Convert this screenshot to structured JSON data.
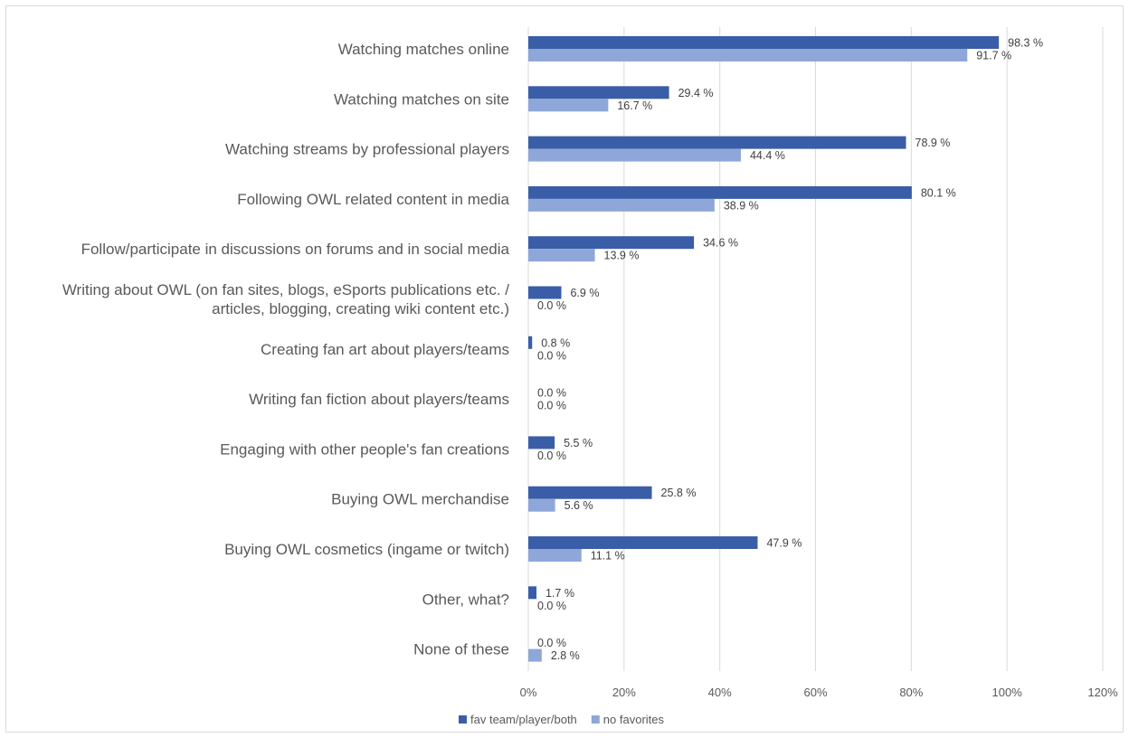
{
  "chart_data": {
    "type": "bar",
    "orientation": "horizontal",
    "categories": [
      "Watching matches online",
      "Watching matches on site",
      "Watching streams by professional players",
      "Following OWL related content in media",
      "Follow/participate in discussions on forums and in social media",
      [
        "Writing about OWL (on fan sites, blogs, eSports publications etc. /",
        "articles, blogging, creating wiki content etc.)"
      ],
      "Creating fan art about players/teams",
      "Writing fan fiction about players/teams",
      "Engaging with other people's fan creations",
      "Buying OWL merchandise",
      "Buying OWL cosmetics (ingame or twitch)",
      "Other, what?",
      "None of these"
    ],
    "series": [
      {
        "name": "fav team/player/both",
        "color": "#3a5da8",
        "values": [
          98.3,
          29.4,
          78.9,
          80.1,
          34.6,
          6.9,
          0.8,
          0.0,
          5.5,
          25.8,
          47.9,
          1.7,
          0.0
        ],
        "labels": [
          "98.3 %",
          "29.4 %",
          "78.9 %",
          "80.1 %",
          "34.6 %",
          "6.9 %",
          "0.8 %",
          "0.0 %",
          "5.5 %",
          "25.8 %",
          "47.9 %",
          "1.7 %",
          "0.0 %"
        ]
      },
      {
        "name": "no favorites",
        "color": "#8fa7d8",
        "values": [
          91.7,
          16.7,
          44.4,
          38.9,
          13.9,
          0.0,
          0.0,
          0.0,
          0.0,
          5.6,
          11.1,
          0.0,
          2.8
        ],
        "labels": [
          "91.7 %",
          "16.7 %",
          "44.4 %",
          "38.9 %",
          "13.9 %",
          "0.0 %",
          "0.0 %",
          "0.0 %",
          "0.0 %",
          "5.6 %",
          "11.1 %",
          "0.0 %",
          "2.8 %"
        ]
      }
    ],
    "xlim": [
      0,
      120
    ],
    "xticks": [
      0,
      20,
      40,
      60,
      80,
      100,
      120
    ],
    "xtick_labels": [
      "0%",
      "20%",
      "40%",
      "60%",
      "80%",
      "100%",
      "120%"
    ],
    "grid": "vertical",
    "legend_position": "bottom",
    "title": "",
    "xlabel": "",
    "ylabel": ""
  }
}
